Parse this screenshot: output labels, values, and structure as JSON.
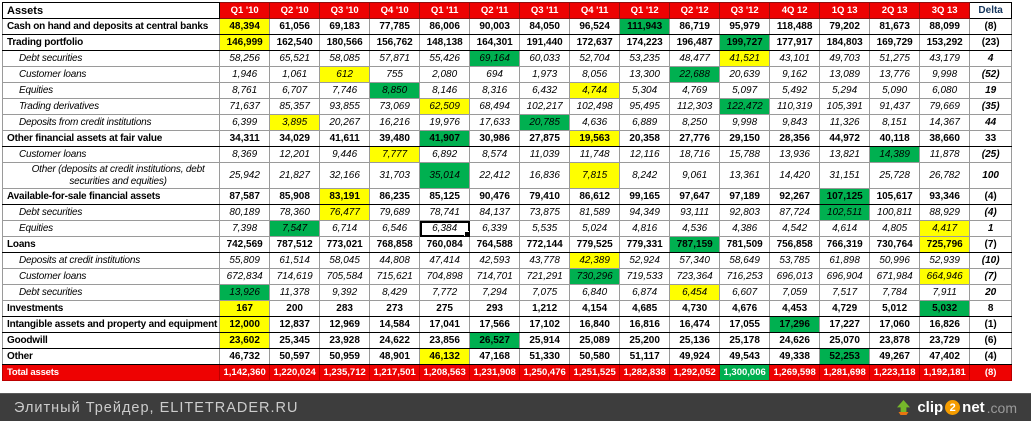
{
  "colors": {
    "header_red": "#ee0202",
    "yellow": "#ffff00",
    "green": "#00b050",
    "navy": "#17375e",
    "footer_bg": "#3d3d3d",
    "footer_text": "#cccccc",
    "logo_arrow_green": "#76b82a",
    "logo_arrow_base": "#e87511",
    "logo_orange": "#f59c00"
  },
  "table": {
    "corner_label": "Assets",
    "columns": [
      "Q1 '10",
      "Q2 '10",
      "Q3 '10",
      "Q4 '10",
      "Q1 '11",
      "Q2 '11",
      "Q3 '11",
      "Q4 '11",
      "Q1 '12",
      "Q2 '12",
      "Q3 '12",
      "4Q 12",
      "1Q 13",
      "2Q 13",
      "3Q 13"
    ],
    "delta_label": "Delta",
    "rows": [
      {
        "label": "Cash on hand and deposits at central banks",
        "type": "cat",
        "values": [
          "48,394",
          "61,056",
          "69,183",
          "77,785",
          "86,006",
          "90,003",
          "84,050",
          "96,524",
          "111,943",
          "86,719",
          "95,979",
          "118,488",
          "79,202",
          "81,673",
          "88,099"
        ],
        "delta": "(8)",
        "hl": {
          "0": "y",
          "8": "g"
        }
      },
      {
        "label": "Trading portfolio",
        "type": "cat",
        "values": [
          "146,999",
          "162,540",
          "180,566",
          "156,762",
          "148,138",
          "164,301",
          "191,440",
          "172,637",
          "174,223",
          "196,487",
          "199,727",
          "177,917",
          "184,803",
          "169,729",
          "153,292"
        ],
        "delta": "(23)",
        "hl": {
          "0": "y",
          "10": "g"
        }
      },
      {
        "label": "Debt securities",
        "type": "sub",
        "values": [
          "58,256",
          "65,521",
          "58,085",
          "57,871",
          "55,426",
          "69,164",
          "60,033",
          "52,704",
          "53,235",
          "48,477",
          "41,521",
          "43,101",
          "49,703",
          "51,275",
          "43,179"
        ],
        "delta": "4",
        "hl": {
          "5": "g",
          "10": "y"
        }
      },
      {
        "label": "Customer loans",
        "type": "sub",
        "values": [
          "1,946",
          "1,061",
          "612",
          "755",
          "2,080",
          "694",
          "1,973",
          "8,056",
          "13,300",
          "22,688",
          "20,639",
          "9,162",
          "13,089",
          "13,776",
          "9,998"
        ],
        "delta": "(52)",
        "hl": {
          "2": "y",
          "9": "g"
        }
      },
      {
        "label": "Equities",
        "type": "sub",
        "values": [
          "8,761",
          "6,707",
          "7,746",
          "8,850",
          "8,146",
          "8,316",
          "6,432",
          "4,744",
          "5,304",
          "4,769",
          "5,097",
          "5,492",
          "5,294",
          "5,090",
          "6,080"
        ],
        "delta": "19",
        "hl": {
          "3": "g",
          "7": "y"
        }
      },
      {
        "label": "Trading derivatives",
        "type": "sub",
        "values": [
          "71,637",
          "85,357",
          "93,855",
          "73,069",
          "62,509",
          "68,494",
          "102,217",
          "102,498",
          "95,495",
          "112,303",
          "122,472",
          "110,319",
          "105,391",
          "91,437",
          "79,669"
        ],
        "delta": "(35)",
        "hl": {
          "4": "y",
          "10": "g"
        }
      },
      {
        "label": "Deposits from credit institutions",
        "type": "sub",
        "values": [
          "6,399",
          "3,895",
          "20,267",
          "16,216",
          "19,976",
          "17,633",
          "20,785",
          "4,636",
          "6,889",
          "8,250",
          "9,998",
          "9,843",
          "11,326",
          "8,151",
          "14,367"
        ],
        "delta": "44",
        "hl": {
          "1": "y",
          "6": "g"
        }
      },
      {
        "label": "Other financial assets at fair value",
        "type": "cat",
        "values": [
          "34,311",
          "34,029",
          "41,611",
          "39,480",
          "41,907",
          "30,986",
          "27,875",
          "19,563",
          "20,358",
          "27,776",
          "29,150",
          "28,356",
          "44,972",
          "40,118",
          "38,660"
        ],
        "delta": "33",
        "hl": {
          "4": "g",
          "7": "y"
        }
      },
      {
        "label": "Customer loans",
        "type": "sub",
        "values": [
          "8,369",
          "12,201",
          "9,446",
          "7,777",
          "6,892",
          "8,574",
          "11,039",
          "11,748",
          "12,116",
          "18,716",
          "15,788",
          "13,936",
          "13,821",
          "14,389",
          "11,878"
        ],
        "delta": "(25)",
        "hl": {
          "3": "y",
          "13": "g"
        }
      },
      {
        "label": "Other (deposits at credit institutions, debt securities and equities)",
        "type": "sub2",
        "values": [
          "25,942",
          "21,827",
          "32,166",
          "31,703",
          "35,014",
          "22,412",
          "16,836",
          "7,815",
          "8,242",
          "9,061",
          "13,361",
          "14,420",
          "31,151",
          "25,728",
          "26,782"
        ],
        "delta": "100",
        "hl": {
          "4": "g",
          "7": "y"
        }
      },
      {
        "label": "Available-for-sale financial assets",
        "type": "cat",
        "values": [
          "87,587",
          "85,908",
          "83,191",
          "86,235",
          "85,125",
          "90,476",
          "79,410",
          "86,612",
          "99,165",
          "97,647",
          "97,189",
          "92,267",
          "107,125",
          "105,617",
          "93,346"
        ],
        "delta": "(4)",
        "hl": {
          "2": "y",
          "12": "g"
        }
      },
      {
        "label": "Debt securities",
        "type": "sub",
        "values": [
          "80,189",
          "78,360",
          "76,477",
          "79,689",
          "78,741",
          "84,137",
          "73,875",
          "81,589",
          "94,349",
          "93,111",
          "92,803",
          "87,724",
          "102,511",
          "100,811",
          "88,929"
        ],
        "delta": "(4)",
        "hl": {
          "2": "y",
          "12": "g"
        }
      },
      {
        "label": "Equities",
        "type": "sub",
        "values": [
          "7,398",
          "7,547",
          "6,714",
          "6,546",
          "6,384",
          "6,339",
          "5,535",
          "5,024",
          "4,816",
          "4,536",
          "4,386",
          "4,542",
          "4,614",
          "4,805",
          "4,417"
        ],
        "delta": "1",
        "hl": {
          "1": "g",
          "14": "y"
        },
        "sel": 4
      },
      {
        "label": "Loans",
        "type": "cat",
        "values": [
          "742,569",
          "787,512",
          "773,021",
          "768,858",
          "760,084",
          "764,588",
          "772,144",
          "779,525",
          "779,331",
          "787,159",
          "781,509",
          "756,858",
          "766,319",
          "730,764",
          "725,796"
        ],
        "delta": "(7)",
        "hl": {
          "9": "g",
          "14": "y"
        }
      },
      {
        "label": "Deposits at credit institutions",
        "type": "sub",
        "values": [
          "55,809",
          "61,514",
          "58,045",
          "44,808",
          "47,414",
          "42,593",
          "43,778",
          "42,389",
          "52,924",
          "57,340",
          "58,649",
          "53,785",
          "61,898",
          "50,996",
          "52,939"
        ],
        "delta": "(10)",
        "hl": {
          "7": "y"
        }
      },
      {
        "label": "Customer loans",
        "type": "sub",
        "values": [
          "672,834",
          "714,619",
          "705,584",
          "715,621",
          "704,898",
          "714,701",
          "721,291",
          "730,296",
          "719,533",
          "723,364",
          "716,253",
          "696,013",
          "696,904",
          "671,984",
          "664,946"
        ],
        "delta": "(7)",
        "hl": {
          "7": "g",
          "14": "y"
        }
      },
      {
        "label": "Debt securities",
        "type": "sub",
        "values": [
          "13,926",
          "11,378",
          "9,392",
          "8,429",
          "7,772",
          "7,294",
          "7,075",
          "6,840",
          "6,874",
          "6,454",
          "6,607",
          "7,059",
          "7,517",
          "7,784",
          "7,911"
        ],
        "delta": "20",
        "hl": {
          "0": "g",
          "9": "y"
        }
      },
      {
        "label": "Investments",
        "type": "cat",
        "values": [
          "167",
          "200",
          "283",
          "273",
          "275",
          "293",
          "1,212",
          "4,154",
          "4,685",
          "4,730",
          "4,676",
          "4,453",
          "4,729",
          "5,012",
          "5,032"
        ],
        "delta": "8",
        "hl": {
          "0": "y",
          "14": "g"
        }
      },
      {
        "label": "Intangible assets and property and equipment",
        "type": "cat",
        "values": [
          "12,000",
          "12,837",
          "12,969",
          "14,584",
          "17,041",
          "17,566",
          "17,102",
          "16,840",
          "16,816",
          "16,474",
          "17,055",
          "17,296",
          "17,227",
          "17,060",
          "16,826"
        ],
        "delta": "(1)",
        "hl": {
          "0": "y",
          "11": "g"
        }
      },
      {
        "label": "Goodwill",
        "type": "cat",
        "values": [
          "23,602",
          "25,345",
          "23,928",
          "24,622",
          "23,856",
          "26,527",
          "25,914",
          "25,089",
          "25,200",
          "25,136",
          "25,178",
          "24,626",
          "25,070",
          "23,878",
          "23,729"
        ],
        "delta": "(6)",
        "hl": {
          "0": "y",
          "5": "g"
        }
      },
      {
        "label": "Other",
        "type": "cat",
        "values": [
          "46,732",
          "50,597",
          "50,959",
          "48,901",
          "46,132",
          "47,168",
          "51,330",
          "50,580",
          "51,117",
          "49,924",
          "49,543",
          "49,338",
          "52,253",
          "49,267",
          "47,402"
        ],
        "delta": "(4)",
        "hl": {
          "4": "y",
          "12": "g"
        }
      },
      {
        "label": "Total assets",
        "type": "total",
        "values": [
          "1,142,360",
          "1,220,024",
          "1,235,712",
          "1,217,501",
          "1,208,563",
          "1,231,908",
          "1,250,476",
          "1,251,525",
          "1,282,838",
          "1,292,052",
          "1,300,006",
          "1,269,598",
          "1,281,698",
          "1,223,118",
          "1,192,181"
        ],
        "delta": "(8)",
        "hl": {
          "10": "g"
        }
      }
    ]
  },
  "footer": {
    "credit": "Элитный Трейдер, ELITETRADER.RU",
    "logo": {
      "clip": "clip",
      "two": "2",
      "net": "net",
      "com": ".com"
    }
  }
}
